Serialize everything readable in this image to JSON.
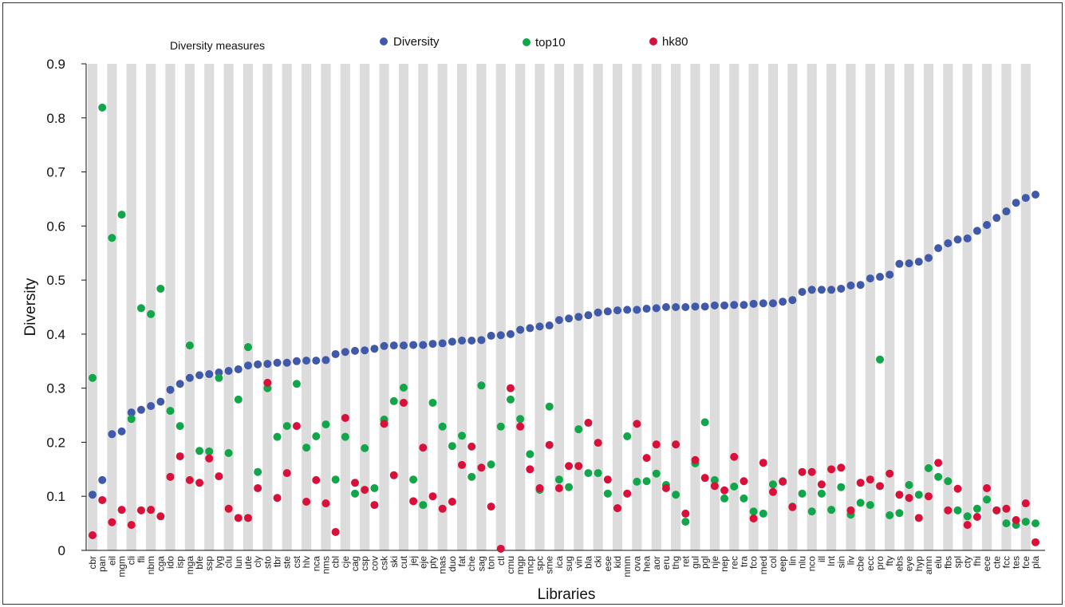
{
  "chart_data": {
    "type": "scatter",
    "legend_title": "Diversity measures",
    "xlabel": "Libraries",
    "ylabel": "Diversity",
    "ylim": [
      0,
      0.9
    ],
    "yticks": [
      "0",
      "0.1",
      "0.2",
      "0.3",
      "0.4",
      "0.5",
      "0.6",
      "0.7",
      "0.8",
      "0.9"
    ],
    "legend_position": "top",
    "band_color": "#dcdcdc",
    "categories": [
      "cbr",
      "pan",
      "eil",
      "mgm",
      "cli",
      "fli",
      "nbm",
      "cga",
      "ido",
      "isp",
      "mga",
      "bfe",
      "ssp",
      "lyg",
      "clu",
      "lun",
      "ute",
      "cly",
      "sto",
      "tbr",
      "ste",
      "cst",
      "hlv",
      "nca",
      "nms",
      "cbl",
      "cje",
      "cag",
      "csp",
      "cov",
      "csk",
      "ski",
      "cut",
      "jej",
      "eje",
      "pty",
      "mas",
      "duo",
      "fat",
      "che",
      "sag",
      "ton",
      "ctl",
      "cmu",
      "mgp",
      "mcp",
      "spc",
      "sme",
      "ica",
      "sug",
      "vin",
      "bla",
      "cki",
      "ese",
      "kid",
      "nmm",
      "ova",
      "hea",
      "aor",
      "eru",
      "thg",
      "ret",
      "gul",
      "pgl",
      "nje",
      "nep",
      "rec",
      "tra",
      "fco",
      "med",
      "col",
      "eep",
      "lin",
      "nlu",
      "nco",
      "ill",
      "lnt",
      "sin",
      "liv",
      "cbe",
      "ecc",
      "pro",
      "fty",
      "ebs",
      "eye",
      "hyp",
      "amn",
      "elu",
      "fbs",
      "spl",
      "cty",
      "fhi",
      "ece",
      "cte",
      "fcc",
      "tes",
      "fce",
      "pla"
    ],
    "series": [
      {
        "name": "Diversity",
        "color": "#4059a8",
        "values": [
          0.103,
          0.13,
          0.215,
          0.22,
          0.255,
          0.26,
          0.267,
          0.275,
          0.297,
          0.308,
          0.319,
          0.324,
          0.326,
          0.329,
          0.332,
          0.335,
          0.342,
          0.344,
          0.345,
          0.347,
          0.347,
          0.35,
          0.351,
          0.351,
          0.352,
          0.363,
          0.367,
          0.369,
          0.37,
          0.373,
          0.378,
          0.379,
          0.379,
          0.38,
          0.38,
          0.382,
          0.383,
          0.386,
          0.388,
          0.388,
          0.389,
          0.397,
          0.398,
          0.4,
          0.408,
          0.411,
          0.414,
          0.416,
          0.426,
          0.429,
          0.432,
          0.435,
          0.44,
          0.442,
          0.444,
          0.445,
          0.445,
          0.447,
          0.448,
          0.45,
          0.45,
          0.45,
          0.451,
          0.451,
          0.453,
          0.453,
          0.454,
          0.454,
          0.456,
          0.457,
          0.457,
          0.46,
          0.463,
          0.478,
          0.482,
          0.482,
          0.482,
          0.484,
          0.49,
          0.491,
          0.503,
          0.506,
          0.51,
          0.53,
          0.531,
          0.534,
          0.541,
          0.559,
          0.568,
          0.575,
          0.577,
          0.591,
          0.602,
          0.615,
          0.627,
          0.643,
          0.652,
          0.658
        ]
      },
      {
        "name": "top10",
        "color": "#12a64a",
        "values": [
          0.319,
          0.819,
          0.578,
          0.621,
          0.243,
          0.448,
          0.437,
          0.484,
          0.258,
          0.23,
          0.379,
          0.184,
          0.183,
          0.319,
          0.18,
          0.279,
          0.376,
          0.145,
          0.3,
          0.21,
          0.23,
          0.308,
          0.19,
          0.211,
          0.233,
          0.131,
          0.21,
          0.105,
          0.189,
          0.115,
          0.242,
          0.276,
          0.301,
          0.131,
          0.084,
          0.273,
          0.229,
          0.193,
          0.212,
          0.136,
          0.305,
          0.159,
          0.229,
          0.279,
          0.243,
          0.178,
          0.112,
          0.266,
          0.131,
          0.117,
          0.224,
          0.143,
          0.143,
          0.105,
          0.078,
          0.211,
          0.127,
          0.128,
          0.142,
          0.121,
          0.103,
          0.053,
          0.161,
          0.237,
          0.13,
          0.096,
          0.118,
          0.096,
          0.072,
          0.068,
          0.122,
          0.128,
          0.081,
          0.105,
          0.072,
          0.105,
          0.075,
          0.117,
          0.066,
          0.088,
          0.084,
          0.353,
          0.065,
          0.069,
          0.121,
          0.103,
          0.152,
          0.136,
          0.128,
          0.074,
          0.063,
          0.077,
          0.094,
          0.074,
          0.05,
          0.047,
          0.053,
          0.05
        ]
      },
      {
        "name": "hk80",
        "color": "#d8103a",
        "values": [
          0.028,
          0.093,
          0.052,
          0.075,
          0.047,
          0.074,
          0.075,
          0.063,
          0.136,
          0.174,
          0.13,
          0.125,
          0.17,
          0.137,
          0.077,
          0.06,
          0.06,
          0.115,
          0.31,
          0.097,
          0.143,
          0.23,
          0.09,
          0.13,
          0.087,
          0.034,
          0.245,
          0.125,
          0.112,
          0.084,
          0.234,
          0.139,
          0.273,
          0.091,
          0.19,
          0.1,
          0.077,
          0.09,
          0.158,
          0.192,
          0.153,
          0.081,
          0.003,
          0.3,
          0.229,
          0.15,
          0.115,
          0.195,
          0.115,
          0.156,
          0.156,
          0.236,
          0.199,
          0.131,
          0.078,
          0.105,
          0.234,
          0.171,
          0.196,
          0.115,
          0.196,
          0.068,
          0.167,
          0.134,
          0.119,
          0.111,
          0.173,
          0.128,
          0.059,
          0.162,
          0.108,
          0.127,
          0.08,
          0.145,
          0.145,
          0.122,
          0.15,
          0.153,
          0.074,
          0.125,
          0.131,
          0.119,
          0.142,
          0.103,
          0.097,
          0.06,
          0.1,
          0.162,
          0.074,
          0.114,
          0.047,
          0.062,
          0.115,
          0.074,
          0.077,
          0.056,
          0.087,
          0.015
        ]
      }
    ]
  }
}
